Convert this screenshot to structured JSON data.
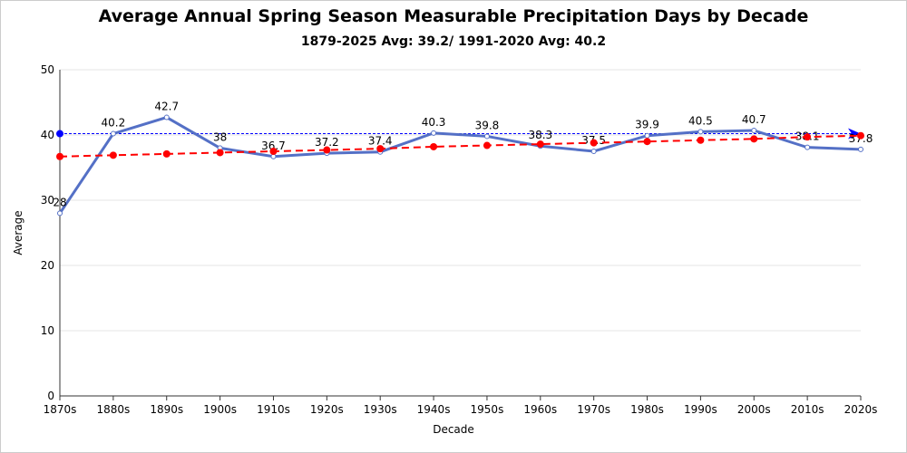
{
  "chart_data": {
    "type": "line",
    "title": "Average Annual Spring Season Measurable Precipitation Days by Decade",
    "subtitle": "1879-2025 Avg: 39.2/ 1991-2020 Avg: 40.2",
    "x_label": "Decade",
    "y_label": "Average",
    "categories": [
      "1870s",
      "1880s",
      "1890s",
      "1900s",
      "1910s",
      "1920s",
      "1930s",
      "1940s",
      "1950s",
      "1960s",
      "1970s",
      "1980s",
      "1990s",
      "2000s",
      "2010s",
      "2020s"
    ],
    "series": [
      {
        "color": "#5470c6",
        "style": "solid",
        "labels": true,
        "values": [
          28,
          40.2,
          42.7,
          38,
          36.7,
          37.2,
          37.4,
          40.3,
          39.8,
          38.3,
          37.5,
          39.9,
          40.5,
          40.7,
          38.1,
          37.8
        ]
      },
      {
        "color": "#ff0000",
        "style": "dashed",
        "labels": false,
        "values": [
          36.7,
          36.9,
          37.1,
          37.3,
          37.5,
          37.7,
          37.9,
          38.2,
          38.4,
          38.6,
          38.8,
          39.0,
          39.2,
          39.4,
          39.7,
          39.9
        ]
      }
    ],
    "reference_line": {
      "value": 40.2,
      "color": "#0000ff"
    },
    "ylim": [
      0,
      50
    ],
    "yticks": [
      0,
      10,
      20,
      30,
      40,
      50
    ],
    "grid": true
  }
}
